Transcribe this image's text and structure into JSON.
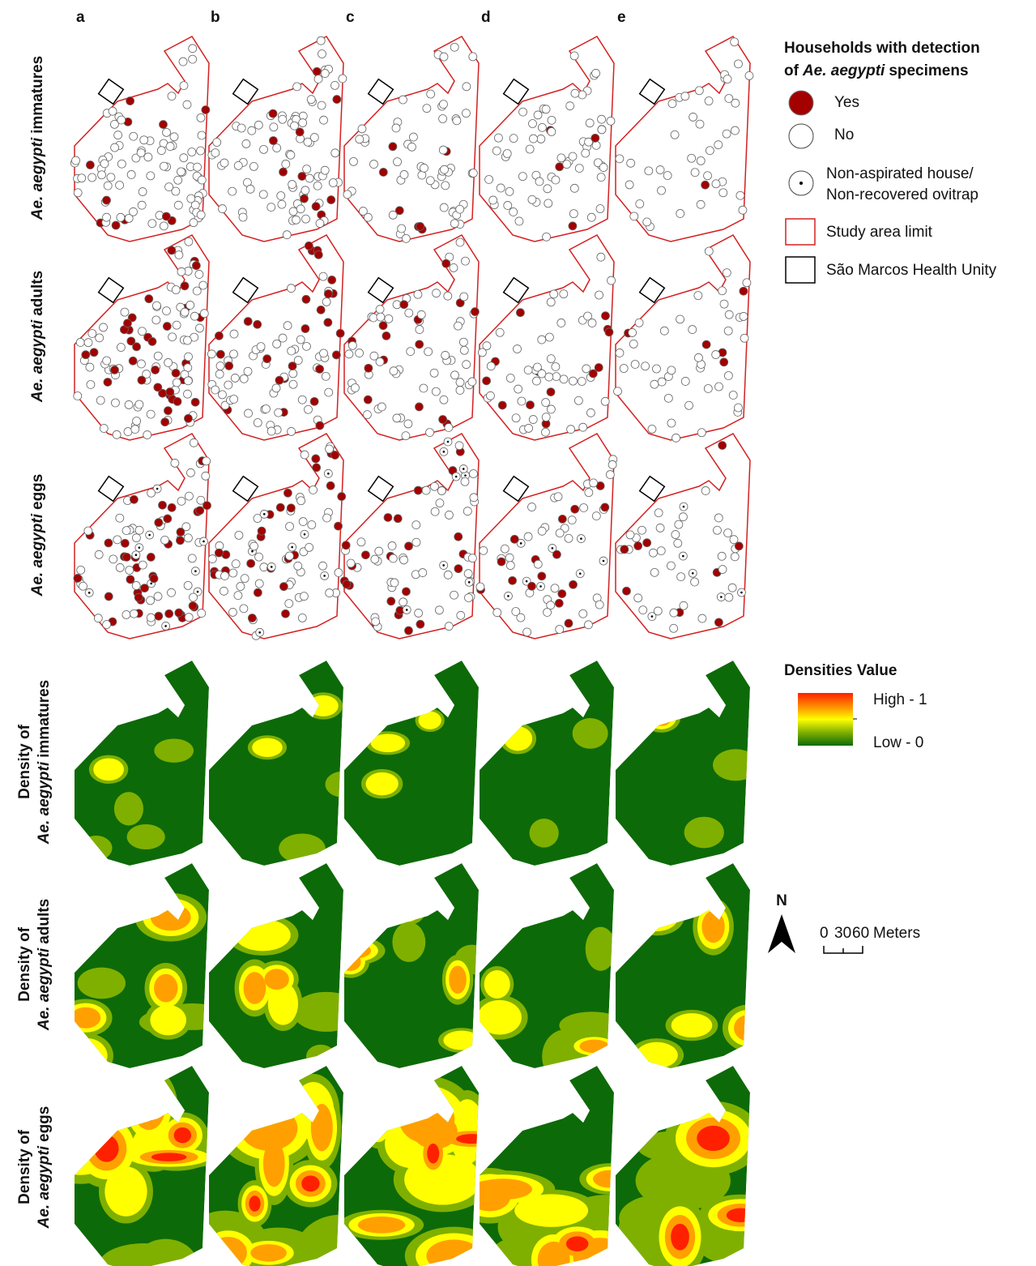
{
  "columns": [
    "a",
    "b",
    "c",
    "d",
    "e"
  ],
  "rows": [
    {
      "species": "Ae. aegypti",
      "suffix": "immatures"
    },
    {
      "species": "Ae. aegypti",
      "suffix": "adults"
    },
    {
      "species": "Ae. aegypti",
      "suffix": "eggs"
    }
  ],
  "density_rows": [
    {
      "prefix": "Density of",
      "species": "Ae. aegypti",
      "suffix": "immatures"
    },
    {
      "prefix": "Density of",
      "species": "Ae. aegypti",
      "suffix": "adults"
    },
    {
      "prefix": "Density of",
      "species": "Ae. aegypti",
      "suffix": "eggs"
    }
  ],
  "legend": {
    "title_line1": "Households with detection",
    "title_line2_prefix": "of",
    "title_line2_species": "Ae. aegypti",
    "title_line2_suffix": "specimens",
    "yes": "Yes",
    "no": "No",
    "non_aspirated": [
      "Non-aspirated house/",
      "Non-recovered ovitrap"
    ],
    "study_area": "Study area limit",
    "health_unit": "São Marcos Health Unity"
  },
  "density_legend": {
    "title": "Densities Value",
    "high": "High - 1",
    "low": "Low - 0"
  },
  "north": "N",
  "scale": {
    "ticks": [
      "0",
      "30",
      "60"
    ],
    "unit": "Meters"
  }
}
